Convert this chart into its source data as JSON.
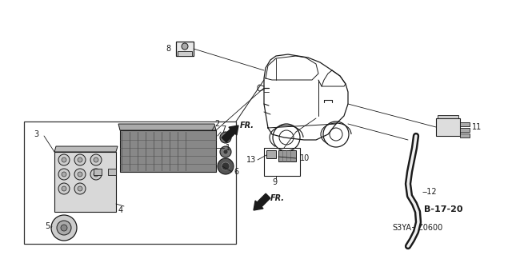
{
  "bg_color": "#ffffff",
  "diagram_code": "S3YA−Z0600",
  "ref_code": "B-17-20",
  "line_color": "#1a1a1a",
  "light_gray": "#aaaaaa",
  "dark_gray": "#555555"
}
